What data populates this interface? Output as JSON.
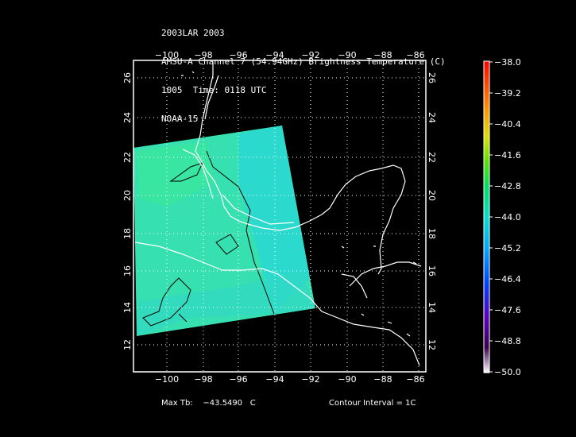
{
  "title_lines": [
    "2003LAR 2003",
    "AMSU-A Channel 7 (54.94GHz) Brightness Temperature (C)",
    "1005  Time: 0118 UTC",
    "NOAA-15"
  ],
  "axes": {
    "lon_ticks": [
      "−100",
      "−98",
      "−96",
      "−94",
      "−92",
      "−90",
      "−88",
      "−86"
    ],
    "lat_ticks": [
      "12",
      "14",
      "16",
      "18",
      "20",
      "22",
      "24",
      "26"
    ],
    "lon_range": [
      -101.8,
      -85.8
    ],
    "lat_range": [
      10.8,
      26.8
    ]
  },
  "colorbar": {
    "labels": [
      "−38.0",
      "−39.2",
      "−40.4",
      "−41.6",
      "−42.8",
      "−44.0",
      "−45.2",
      "−46.4",
      "−47.6",
      "−48.8",
      "−50.0"
    ],
    "min": -50.0,
    "max": -38.0
  },
  "footer": {
    "max_tb_label": "Max Tb:",
    "max_tb_value": "−43.5490",
    "max_tb_unit": "C",
    "contour_interval": "Contour Interval = 1C"
  },
  "colors": {
    "swath_green": "#33e6a4",
    "swath_cyan": "#29d9d9",
    "coastline": "#ffffff",
    "contour": "#000000"
  }
}
